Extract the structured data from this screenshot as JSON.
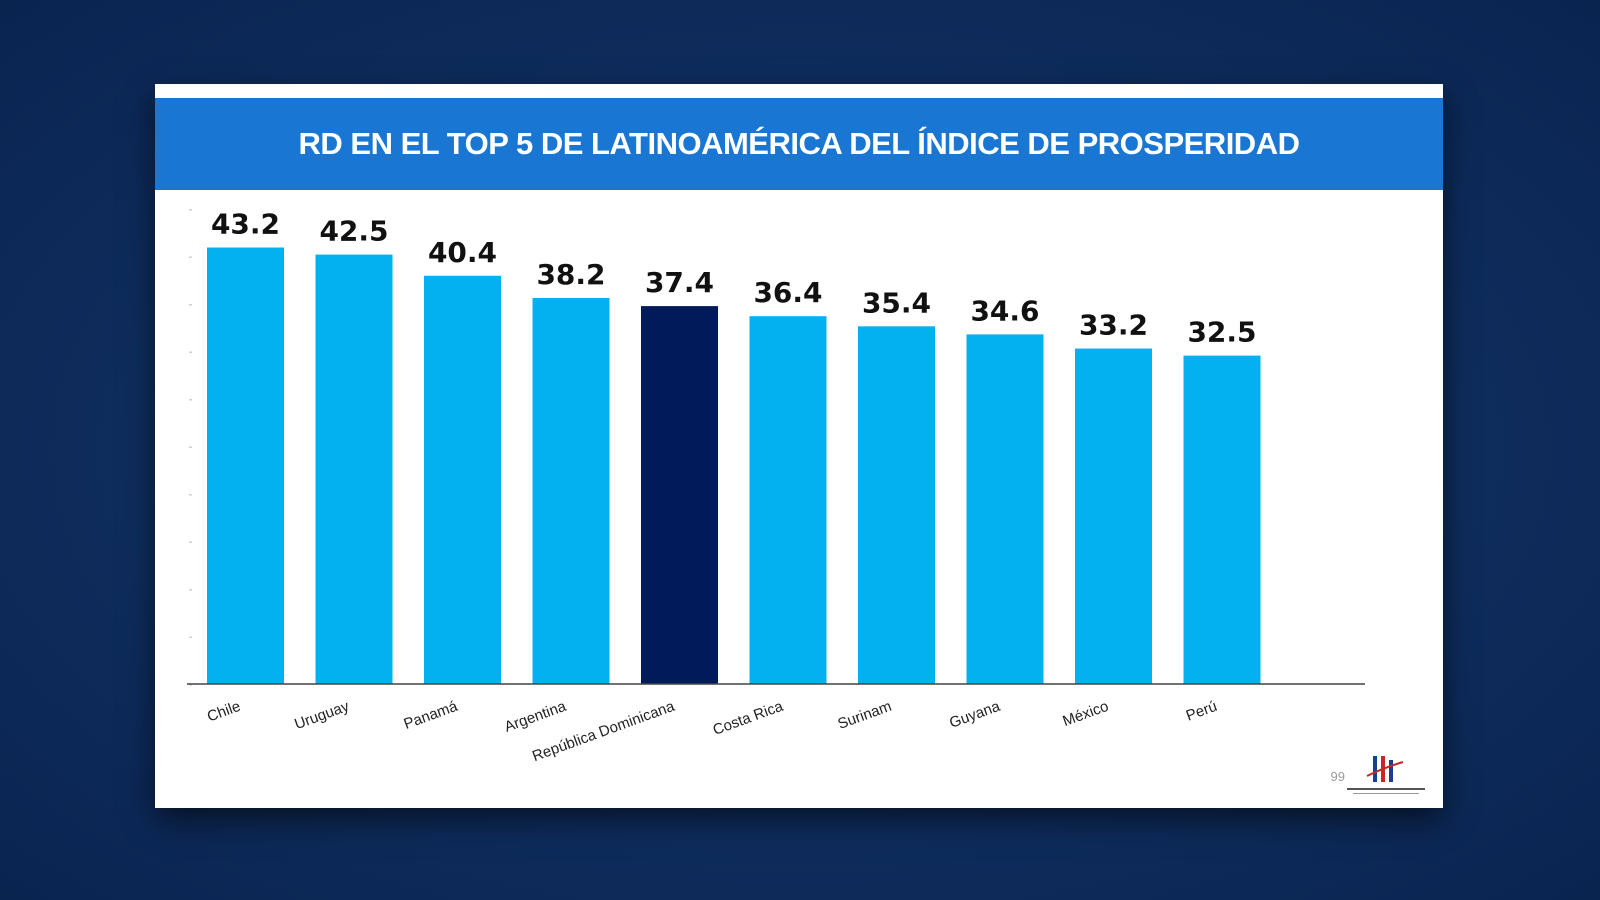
{
  "slide": {
    "title": "RD EN EL TOP 5 DE LATINOAMÉRICA DEL ÍNDICE DE PROSPERIDAD",
    "page_number": "99"
  },
  "colors": {
    "background": "#0e2c5c",
    "title_band": "#1976d2",
    "bar": "#03b0f0",
    "highlight_bar": "#001a5a"
  },
  "logo": {
    "icon": "company-logo-icon"
  },
  "chart_data": {
    "type": "bar",
    "title": "",
    "xlabel": "",
    "ylabel": "",
    "categories": [
      "Chile",
      "Uruguay",
      "Panamá",
      "Argentina",
      "República Dominicana",
      "Costa Rica",
      "Surinam",
      "Guyana",
      "México",
      "Perú"
    ],
    "values": [
      43.2,
      42.5,
      40.4,
      38.2,
      37.4,
      36.4,
      35.4,
      34.6,
      33.2,
      32.5
    ],
    "value_labels": [
      "43.2",
      "42.5",
      "40.4",
      "38.2",
      "37.4",
      "36.4",
      "35.4",
      "34.6",
      "33.2",
      "32.5"
    ],
    "highlight_category": "República Dominicana",
    "ylim": [
      0,
      48
    ],
    "grid": false,
    "data_labels": true
  }
}
